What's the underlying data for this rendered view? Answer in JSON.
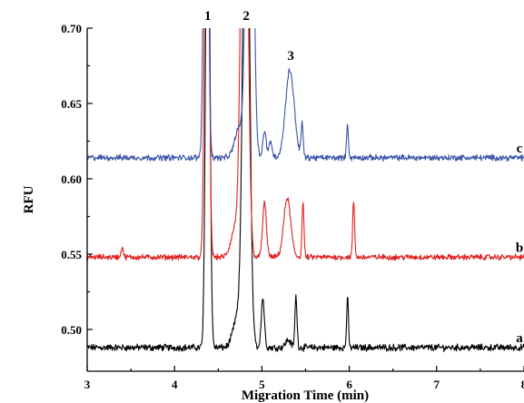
{
  "chart_data": {
    "type": "line",
    "title": "",
    "xlabel": "Migration Time (min)",
    "ylabel": "RFU",
    "xlim": [
      3,
      8
    ],
    "ylim": [
      0.475,
      0.7
    ],
    "xticks": [
      3,
      4,
      5,
      6,
      7,
      8
    ],
    "xtick_labels": [
      "3",
      "4",
      "5",
      "6",
      "7",
      "8"
    ],
    "yticks": [
      0.5,
      0.55,
      0.6,
      0.65,
      0.7
    ],
    "ytick_labels": [
      "0.50",
      "0.55",
      "0.60",
      "0.65",
      "0.70"
    ],
    "grid": false,
    "peak_labels": [
      {
        "text": "1",
        "x": 4.38
      },
      {
        "text": "2",
        "x": 4.82
      },
      {
        "text": "3",
        "x": 5.33
      }
    ],
    "series": [
      {
        "name": "a",
        "color": "#000000",
        "baseline": 0.488,
        "noise": 0.0018,
        "peaks": [
          {
            "x": 4.38,
            "height": 0.4,
            "width": 0.022
          },
          {
            "x": 4.82,
            "height": 0.4,
            "width": 0.035
          },
          {
            "x": 4.72,
            "height": 0.02,
            "width": 0.05
          },
          {
            "x": 5.01,
            "height": 0.033,
            "width": 0.018
          },
          {
            "x": 5.3,
            "height": 0.005,
            "width": 0.03
          },
          {
            "x": 5.39,
            "height": 0.034,
            "width": 0.012
          },
          {
            "x": 5.98,
            "height": 0.034,
            "width": 0.01
          }
        ]
      },
      {
        "name": "b",
        "color": "#e02020",
        "baseline": 0.548,
        "noise": 0.0015,
        "peaks": [
          {
            "x": 3.4,
            "height": 0.007,
            "width": 0.012
          },
          {
            "x": 4.37,
            "height": 0.4,
            "width": 0.022
          },
          {
            "x": 4.8,
            "height": 0.4,
            "width": 0.035
          },
          {
            "x": 4.7,
            "height": 0.02,
            "width": 0.05
          },
          {
            "x": 5.03,
            "height": 0.036,
            "width": 0.022
          },
          {
            "x": 5.29,
            "height": 0.039,
            "width": 0.04
          },
          {
            "x": 5.47,
            "height": 0.037,
            "width": 0.011
          },
          {
            "x": 6.05,
            "height": 0.037,
            "width": 0.011
          }
        ]
      },
      {
        "name": "c",
        "color": "#3a55a8",
        "baseline": 0.614,
        "noise": 0.0016,
        "peaks": [
          {
            "x": 4.36,
            "height": 0.4,
            "width": 0.022
          },
          {
            "x": 4.86,
            "height": 0.4,
            "width": 0.035
          },
          {
            "x": 4.74,
            "height": 0.02,
            "width": 0.05
          },
          {
            "x": 5.03,
            "height": 0.017,
            "width": 0.02
          },
          {
            "x": 5.1,
            "height": 0.01,
            "width": 0.02
          },
          {
            "x": 5.32,
            "height": 0.058,
            "width": 0.05
          },
          {
            "x": 5.46,
            "height": 0.022,
            "width": 0.012
          },
          {
            "x": 5.98,
            "height": 0.023,
            "width": 0.01
          }
        ]
      }
    ]
  }
}
